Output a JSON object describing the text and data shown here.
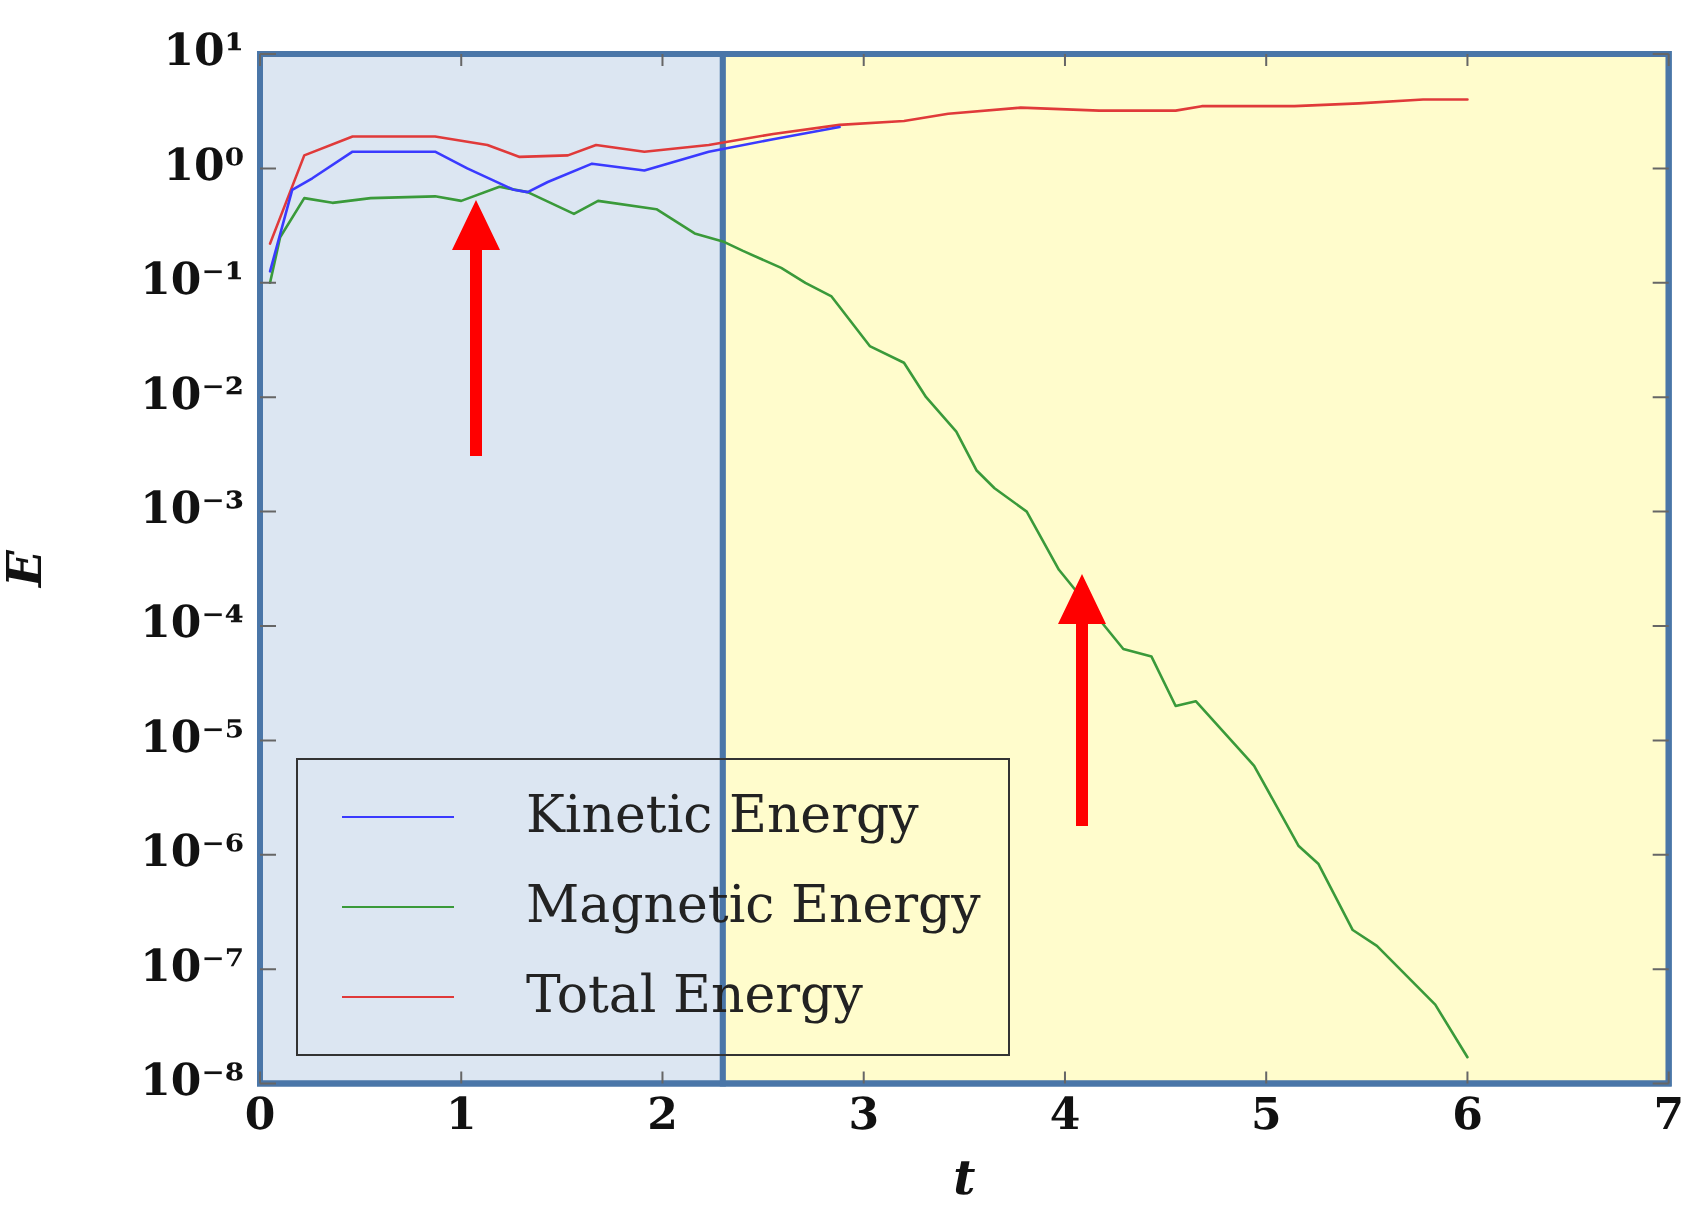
{
  "chart_data": {
    "type": "line",
    "xlabel": "t",
    "ylabel": "E",
    "log": "y",
    "grid": false,
    "legend": "bottom left",
    "marker": "none",
    "line_style": "solid",
    "xlim": [
      0,
      7
    ],
    "xticks": [
      0,
      1,
      2,
      3,
      4,
      5,
      6,
      7
    ],
    "ylim": [
      1e-08,
      10
    ],
    "yticks": [
      {
        "value": 1e-08,
        "label": "10⁻⁸"
      },
      {
        "value": 1e-07,
        "label": "10⁻⁷"
      },
      {
        "value": 1e-06,
        "label": "10⁻⁶"
      },
      {
        "value": 1e-05,
        "label": "10⁻⁵"
      },
      {
        "value": 0.0001,
        "label": "10⁻⁴"
      },
      {
        "value": 0.001,
        "label": "10⁻³"
      },
      {
        "value": 0.01,
        "label": "10⁻²"
      },
      {
        "value": 0.1,
        "label": "10⁻¹"
      },
      {
        "value": 1,
        "label": "10⁰"
      },
      {
        "value": 10,
        "label": "10¹"
      }
    ],
    "bands": [
      {
        "axis": "x",
        "from": 0,
        "to": 2.3,
        "color": "#dce6f2"
      },
      {
        "axis": "x",
        "from": 2.3,
        "to": 7,
        "color": "#fffccc"
      }
    ],
    "series": [
      {
        "name": "Kinetic Energy",
        "color": "#3a3aff",
        "x": [
          0.05,
          0.16,
          0.26,
          0.46,
          0.87,
          1.03,
          1.26,
          1.33,
          1.43,
          1.65,
          1.91,
          2.23,
          2.55,
          2.88
        ],
        "values": [
          0.126,
          0.65,
          0.82,
          1.4,
          1.4,
          1.0,
          0.65,
          0.62,
          0.76,
          1.1,
          0.96,
          1.4,
          1.8,
          2.3
        ]
      },
      {
        "name": "Magnetic Energy",
        "color": "#3a9a3a",
        "x": [
          0.05,
          0.1,
          0.22,
          0.36,
          0.55,
          0.87,
          1.0,
          1.19,
          1.33,
          1.56,
          1.68,
          1.97,
          2.16,
          2.3,
          2.4,
          2.59,
          2.71,
          2.84,
          3.03,
          3.2,
          3.31,
          3.46,
          3.56,
          3.65,
          3.81,
          3.97,
          4.29,
          4.43,
          4.55,
          4.65,
          4.94,
          5.16,
          5.26,
          5.43,
          5.55,
          5.84,
          6.0
        ],
        "values": [
          0.1,
          0.25,
          0.55,
          0.5,
          0.55,
          0.57,
          0.52,
          0.69,
          0.62,
          0.4,
          0.52,
          0.44,
          0.27,
          0.23,
          0.19,
          0.135,
          0.1,
          0.076,
          0.028,
          0.02,
          0.01,
          0.005,
          0.0023,
          0.0016,
          0.001,
          0.00031,
          6.3e-05,
          5.4e-05,
          2e-05,
          2.2e-05,
          6e-06,
          1.2e-06,
          8.3e-07,
          2.2e-07,
          1.6e-07,
          4.9e-08,
          1.7e-08
        ]
      },
      {
        "name": "Total Energy",
        "color": "#e03a3a",
        "x": [
          0.05,
          0.22,
          0.46,
          0.87,
          1.13,
          1.29,
          1.53,
          1.67,
          1.91,
          2.23,
          2.55,
          2.88,
          3.2,
          3.42,
          3.78,
          4.17,
          4.55,
          4.68,
          5.14,
          5.46,
          5.78,
          6.0
        ],
        "values": [
          0.22,
          1.3,
          1.9,
          1.9,
          1.6,
          1.26,
          1.3,
          1.6,
          1.4,
          1.6,
          2.0,
          2.4,
          2.6,
          3.0,
          3.4,
          3.2,
          3.2,
          3.5,
          3.5,
          3.7,
          4.0,
          4.0
        ]
      }
    ]
  }
}
